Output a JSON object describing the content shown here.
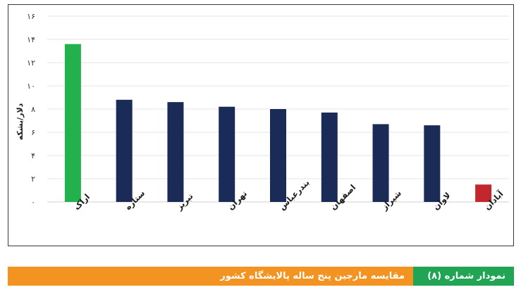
{
  "chart_data": {
    "type": "bar",
    "categories": [
      "اراک",
      "ستاره",
      "تبریز",
      "تهران",
      "بندرعباس",
      "اصفهان",
      "شیراز",
      "لاوان",
      "آبادان"
    ],
    "values": [
      13.6,
      8.8,
      8.6,
      8.2,
      8.0,
      7.7,
      6.7,
      6.6,
      1.5
    ],
    "colors": [
      "#22b14c",
      "#1b2b58",
      "#1b2b58",
      "#1b2b58",
      "#1b2b58",
      "#1b2b58",
      "#1b2b58",
      "#1b2b58",
      "#c1272d"
    ],
    "ylabel": "دلار/بشکه",
    "ylim": [
      0,
      16
    ],
    "yticks": [
      "۰",
      "۲",
      "۴",
      "۶",
      "۸",
      "۱۰",
      "۱۲",
      "۱۴",
      "۱۶"
    ],
    "grid": true
  },
  "caption": {
    "label": "نمودار شماره (۸)",
    "title": "مقایسه مارجین پنج ساله پالایشگاه کشور",
    "label_color": "#22a455",
    "title_color": "#f39322"
  }
}
